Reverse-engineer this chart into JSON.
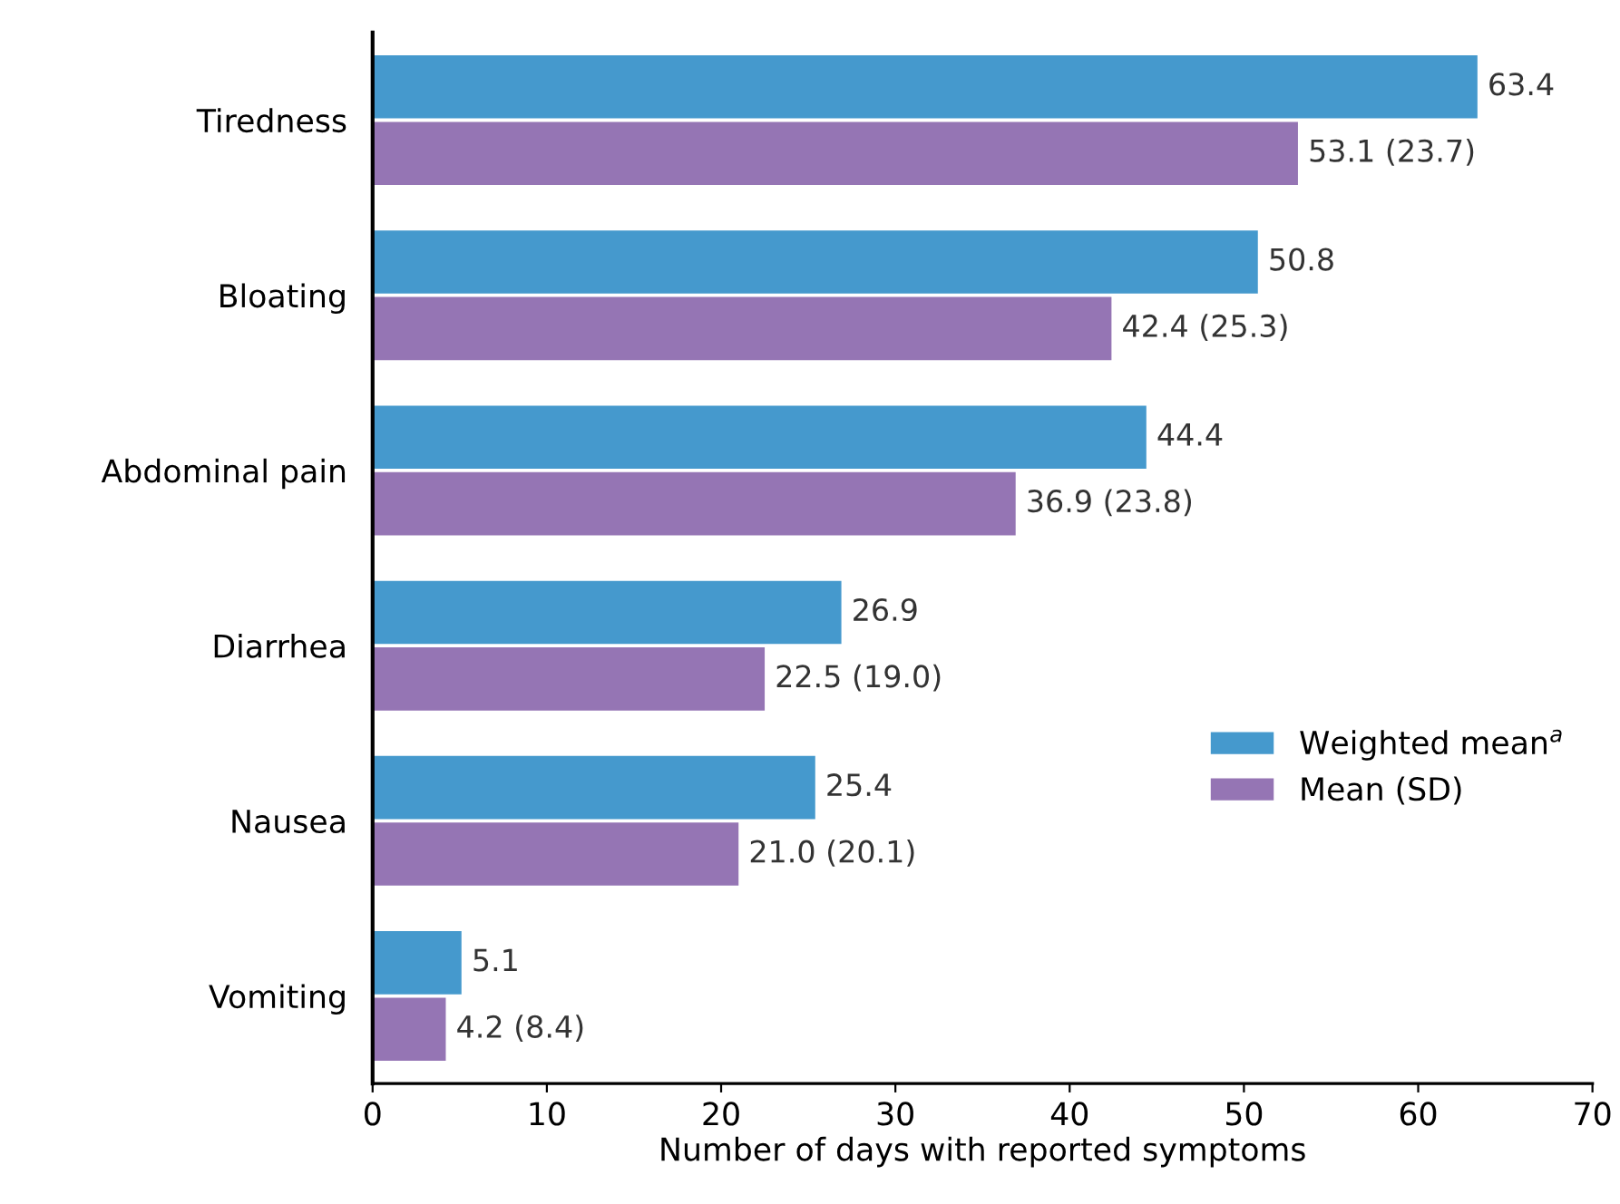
{
  "chart_data": {
    "type": "bar",
    "orientation": "horizontal",
    "xlabel": "Number of days with reported symptoms",
    "categories": [
      "Tiredness",
      "Bloating",
      "Abdominal pain",
      "Diarrhea",
      "Nausea",
      "Vomiting"
    ],
    "series": [
      {
        "name": "Weighted mean$^{a}$",
        "color": "#4599cd",
        "values": [
          63.4,
          50.8,
          44.4,
          26.9,
          25.4,
          5.1
        ],
        "value_labels": [
          "63.4",
          "50.8",
          "44.4",
          "26.9",
          "25.4",
          "5.1"
        ]
      },
      {
        "name": "Mean (SD)",
        "color": "#9575b4",
        "values": [
          53.1,
          42.4,
          36.9,
          22.5,
          21.0,
          4.2
        ],
        "value_labels": [
          "53.1 (23.7)",
          "42.4 (25.3)",
          "36.9 (23.8)",
          "22.5 (19.0)",
          "21.0 (20.1)",
          "4.2 (8.4)"
        ]
      }
    ],
    "xlim": [
      0,
      70
    ],
    "xticks": [
      0,
      10,
      20,
      30,
      40,
      50,
      60,
      70
    ],
    "grid": false,
    "legend": "right"
  }
}
